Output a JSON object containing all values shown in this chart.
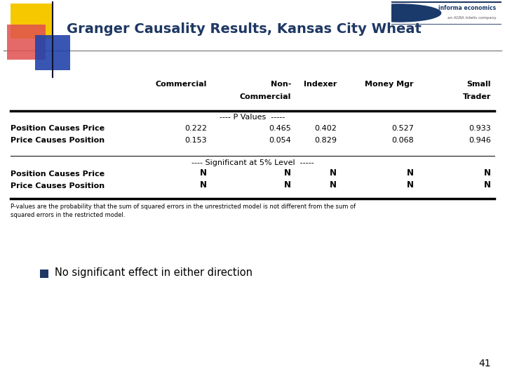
{
  "title": "Granger Causality Results, Kansas City Wheat",
  "title_color": "#1F3864",
  "title_fontsize": 14,
  "bg_color": "#FFFFFF",
  "col_headers_line1": [
    "",
    "Commercial",
    "Non-",
    "Indexer",
    "Money Mgr",
    "Small"
  ],
  "col_headers_line2": [
    "",
    "",
    "Commercial",
    "",
    "",
    "Trader"
  ],
  "pval_section_label": "---- P Values  -----",
  "sig_section_label": "---- Significant at 5% Level  -----",
  "row_labels": [
    "Position Causes Price",
    "Price Causes Position"
  ],
  "pval_data": [
    [
      "0.222",
      "0.465",
      "0.402",
      "0.527",
      "0.933"
    ],
    [
      "0.153",
      "0.054",
      "0.829",
      "0.068",
      "0.946"
    ]
  ],
  "sig_data": [
    [
      "N",
      "N",
      "N",
      "N",
      "N"
    ],
    [
      "N",
      "N",
      "N",
      "N",
      "N"
    ]
  ],
  "footnote_line1": "P-values are the probability that the sum of squared errors in the unrestricted model is not different from the sum of",
  "footnote_line2": "squared errors in the restricted model.",
  "bullet_text": "No significant effect in either direction",
  "bullet_color": "#1F3864",
  "slide_number": "41",
  "logo_yellow": "#F5C800",
  "logo_red": "#E05050",
  "logo_blue": "#2244AA",
  "logo_dark_blue": "#1F3864",
  "header_line_color": "#888888",
  "table_line_color": "#000000"
}
